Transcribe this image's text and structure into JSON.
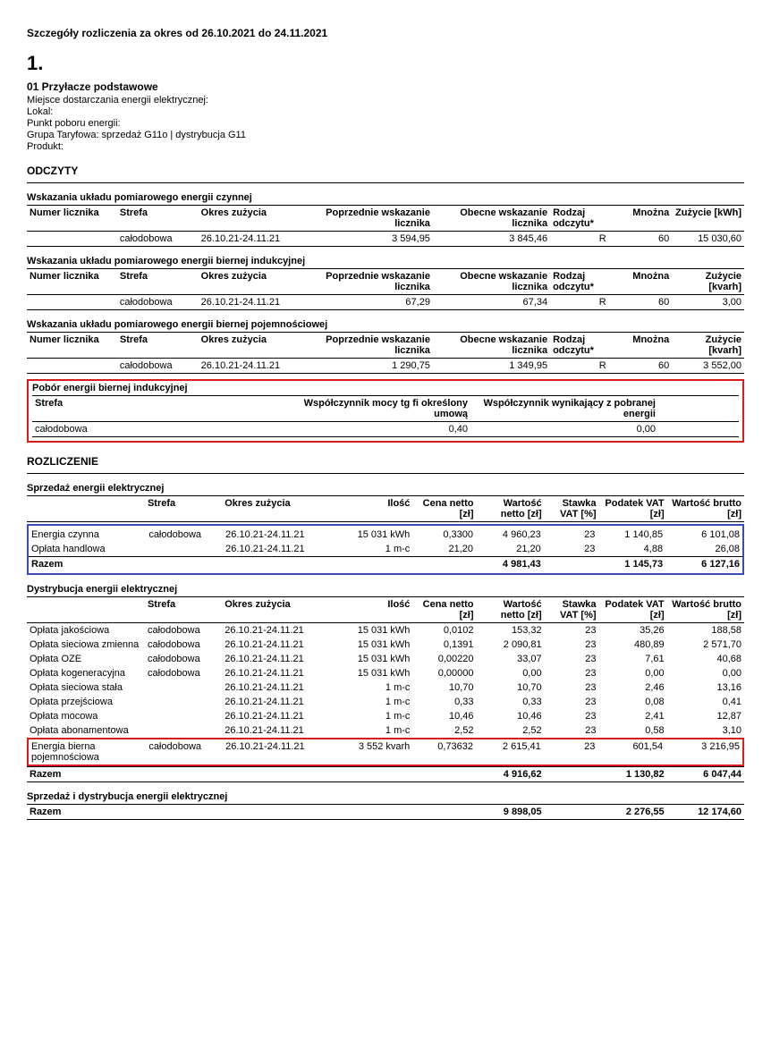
{
  "header": {
    "title": "Szczegóły rozliczenia za okres od 26.10.2021 do 24.11.2021",
    "number": "1.",
    "sub": "01  Przyłacze podstawowe",
    "lines": [
      "Miejsce dostarczania energii elektrycznej:",
      "Lokal:",
      "Punkt poboru energii:",
      "Grupa Taryfowa: sprzedaż G11o  |  dystrybucja G11",
      "Produkt:"
    ]
  },
  "odczyty_label": "ODCZYTY",
  "meter_tables": {
    "headers": {
      "numer": "Numer licznika",
      "strefa": "Strefa",
      "okres": "Okres zużycia",
      "poprzednie": "Poprzednie wskazanie licznika",
      "obecne": "Obecne wskazanie licznika",
      "rodzaj": "Rodzaj odczytu*",
      "mnozna": "Mnożna",
      "zuzycie_kwh": "Zużycie [kWh]",
      "zuzycie_kvarh": "Zużycie [kvarh]"
    },
    "t1": {
      "caption": "Wskazania układu pomiarowego energii czynnej",
      "row": {
        "strefa": "całodobowa",
        "okres": "26.10.21-24.11.21",
        "poprz": "3 594,95",
        "obec": "3 845,46",
        "rodzaj": "R",
        "mnozna": "60",
        "zuzycie": "15 030,60"
      }
    },
    "t2": {
      "caption": "Wskazania układu pomiarowego energii biernej indukcyjnej",
      "row": {
        "strefa": "całodobowa",
        "okres": "26.10.21-24.11.21",
        "poprz": "67,29",
        "obec": "67,34",
        "rodzaj": "R",
        "mnozna": "60",
        "zuzycie": "3,00"
      }
    },
    "t3": {
      "caption": "Wskazania układu pomiarowego energii biernej pojemnościowej",
      "row": {
        "strefa": "całodobowa",
        "okres": "26.10.21-24.11.21",
        "poprz": "1 290,75",
        "obec": "1 349,95",
        "rodzaj": "R",
        "mnozna": "60",
        "zuzycie": "3 552,00"
      }
    }
  },
  "pobor": {
    "caption": "Pobór energii biernej indukcyjnej",
    "h_strefa": "Strefa",
    "h_tgfi": "Współczynnik mocy tg fi określony umową",
    "h_wyn": "Współczynnik wynikający z pobranej energii",
    "row": {
      "strefa": "całodobowa",
      "tgfi": "0,40",
      "wyn": "0,00"
    }
  },
  "rozliczenie_label": "ROZLICZENIE",
  "settle_headers": {
    "strefa": "Strefa",
    "okres": "Okres zużycia",
    "ilosc": "Ilość",
    "cena": "Cena netto [zł]",
    "wnetto": "Wartość netto [zł]",
    "vat": "Stawka VAT [%]",
    "podatek": "Podatek VAT [zł]",
    "wbrutto": "Wartość brutto [zł]"
  },
  "sprzedaz": {
    "caption": "Sprzedaż energii elektrycznej",
    "rows": [
      {
        "name": "Energia czynna",
        "strefa": "całodobowa",
        "okres": "26.10.21-24.11.21",
        "ilosc": "15 031 kWh",
        "cena": "0,3300",
        "wnetto": "4 960,23",
        "vat": "23",
        "podatek": "1 140,85",
        "wbrutto": "6 101,08"
      },
      {
        "name": "Opłata handlowa",
        "strefa": "",
        "okres": "26.10.21-24.11.21",
        "ilosc": "1 m-c",
        "cena": "21,20",
        "wnetto": "21,20",
        "vat": "23",
        "podatek": "4,88",
        "wbrutto": "26,08"
      }
    ],
    "razem": {
      "label": "Razem",
      "wnetto": "4 981,43",
      "podatek": "1 145,73",
      "wbrutto": "6 127,16"
    }
  },
  "dystrybucja": {
    "caption": "Dystrybucja energii elektrycznej",
    "rows_main": [
      {
        "name": "Opłata jakościowa",
        "strefa": "całodobowa",
        "okres": "26.10.21-24.11.21",
        "ilosc": "15 031 kWh",
        "cena": "0,0102",
        "wnetto": "153,32",
        "vat": "23",
        "podatek": "35,26",
        "wbrutto": "188,58"
      },
      {
        "name": "Opłata sieciowa zmienna",
        "strefa": "całodobowa",
        "okres": "26.10.21-24.11.21",
        "ilosc": "15 031 kWh",
        "cena": "0,1391",
        "wnetto": "2 090,81",
        "vat": "23",
        "podatek": "480,89",
        "wbrutto": "2 571,70"
      },
      {
        "name": "Opłata OZE",
        "strefa": "całodobowa",
        "okres": "26.10.21-24.11.21",
        "ilosc": "15 031 kWh",
        "cena": "0,00220",
        "wnetto": "33,07",
        "vat": "23",
        "podatek": "7,61",
        "wbrutto": "40,68"
      },
      {
        "name": "Opłata kogeneracyjna",
        "strefa": "całodobowa",
        "okres": "26.10.21-24.11.21",
        "ilosc": "15 031 kWh",
        "cena": "0,00000",
        "wnetto": "0,00",
        "vat": "23",
        "podatek": "0,00",
        "wbrutto": "0,00"
      },
      {
        "name": "Opłata sieciowa stała",
        "strefa": "",
        "okres": "26.10.21-24.11.21",
        "ilosc": "1 m-c",
        "cena": "10,70",
        "wnetto": "10,70",
        "vat": "23",
        "podatek": "2,46",
        "wbrutto": "13,16"
      },
      {
        "name": "Opłata przejściowa",
        "strefa": "",
        "okres": "26.10.21-24.11.21",
        "ilosc": "1 m-c",
        "cena": "0,33",
        "wnetto": "0,33",
        "vat": "23",
        "podatek": "0,08",
        "wbrutto": "0,41"
      },
      {
        "name": "Opłata mocowa",
        "strefa": "",
        "okres": "26.10.21-24.11.21",
        "ilosc": "1 m-c",
        "cena": "10,46",
        "wnetto": "10,46",
        "vat": "23",
        "podatek": "2,41",
        "wbrutto": "12,87"
      },
      {
        "name": "Opłata abonamentowa",
        "strefa": "",
        "okres": "26.10.21-24.11.21",
        "ilosc": "1 m-c",
        "cena": "2,52",
        "wnetto": "2,52",
        "vat": "23",
        "podatek": "0,58",
        "wbrutto": "3,10"
      }
    ],
    "row_red": {
      "name": "Energia bierna pojemnościowa",
      "strefa": "całodobowa",
      "okres": "26.10.21-24.11.21",
      "ilosc": "3 552 kvarh",
      "cena": "0,73632",
      "wnetto": "2 615,41",
      "vat": "23",
      "podatek": "601,54",
      "wbrutto": "3 216,95"
    },
    "razem": {
      "label": "Razem",
      "wnetto": "4 916,62",
      "podatek": "1 130,82",
      "wbrutto": "6 047,44"
    }
  },
  "total": {
    "caption": "Sprzedaż i dystrybucja energii elektrycznej",
    "razem": {
      "label": "Razem",
      "wnetto": "9 898,05",
      "podatek": "2 276,55",
      "wbrutto": "12 174,60"
    }
  },
  "colors": {
    "red": "#d91c1c",
    "blue": "#3a4db3"
  }
}
